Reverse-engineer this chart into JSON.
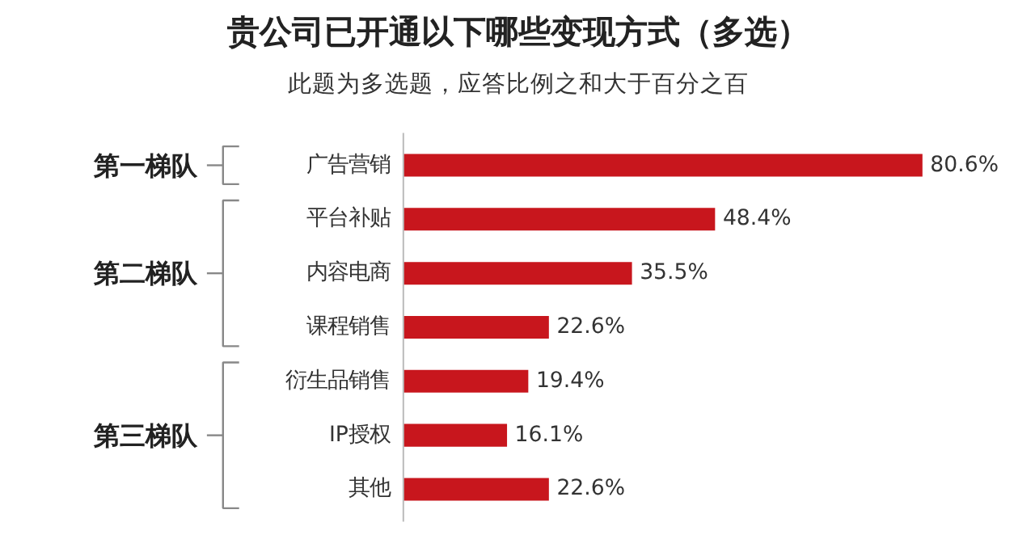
{
  "chart_data": {
    "type": "bar",
    "orientation": "horizontal",
    "title": "贵公司已开通以下哪些变现方式（多选）",
    "subtitle": "此题为多选题，应答比例之和大于百分之百",
    "categories": [
      "广告营销",
      "平台补贴",
      "内容电商",
      "课程销售",
      "衍生品销售",
      "IP授权",
      "其他"
    ],
    "values": [
      80.6,
      48.4,
      35.5,
      22.6,
      19.4,
      16.1,
      22.6
    ],
    "value_labels": [
      "80.6%",
      "48.4%",
      "35.5%",
      "22.6%",
      "19.4%",
      "16.1%",
      "22.6%"
    ],
    "color": "#c8161d",
    "annotations": [
      "第一梯队",
      "第二梯队",
      "第三梯队"
    ]
  }
}
